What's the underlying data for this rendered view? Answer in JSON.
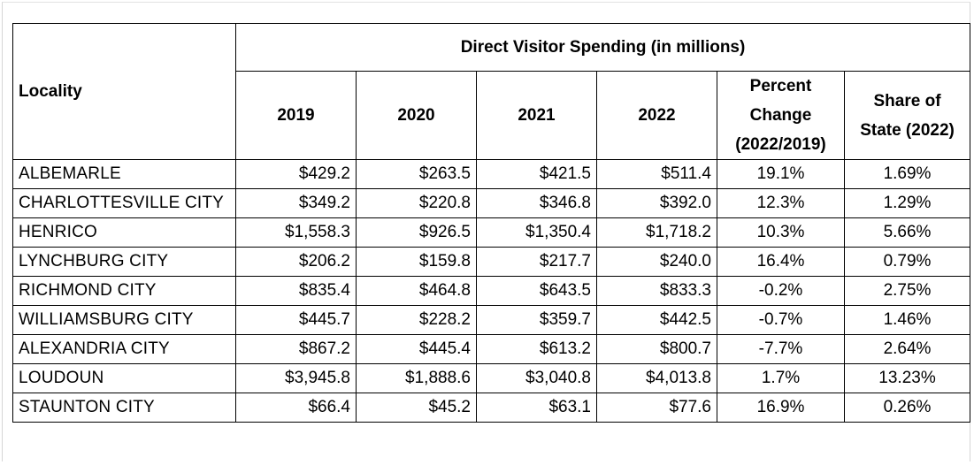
{
  "table": {
    "group_header": "Direct Visitor Spending (in millions)",
    "columns": {
      "locality": "Locality",
      "y2019": "2019",
      "y2020": "2020",
      "y2021": "2021",
      "y2022": "2022",
      "pct_change_line1": "Percent",
      "pct_change_line2": "Change",
      "pct_change_line3": "(2022/2019)",
      "share_line1": "Share of",
      "share_line2": "State (2022)"
    },
    "rows": [
      {
        "locality": "ALBEMARLE",
        "y2019": "$429.2",
        "y2020": "$263.5",
        "y2021": "$421.5",
        "y2022": "$511.4",
        "pct": "19.1%",
        "share": "1.69%"
      },
      {
        "locality": "CHARLOTTESVILLE CITY",
        "y2019": "$349.2",
        "y2020": "$220.8",
        "y2021": "$346.8",
        "y2022": "$392.0",
        "pct": "12.3%",
        "share": "1.29%"
      },
      {
        "locality": "HENRICO",
        "y2019": "$1,558.3",
        "y2020": "$926.5",
        "y2021": "$1,350.4",
        "y2022": "$1,718.2",
        "pct": "10.3%",
        "share": "5.66%"
      },
      {
        "locality": "LYNCHBURG CITY",
        "y2019": "$206.2",
        "y2020": "$159.8",
        "y2021": "$217.7",
        "y2022": "$240.0",
        "pct": "16.4%",
        "share": "0.79%"
      },
      {
        "locality": "RICHMOND CITY",
        "y2019": "$835.4",
        "y2020": "$464.8",
        "y2021": "$643.5",
        "y2022": "$833.3",
        "pct": "-0.2%",
        "share": "2.75%"
      },
      {
        "locality": "WILLIAMSBURG CITY",
        "y2019": "$445.7",
        "y2020": "$228.2",
        "y2021": "$359.7",
        "y2022": "$442.5",
        "pct": "-0.7%",
        "share": "1.46%"
      },
      {
        "locality": "ALEXANDRIA CITY",
        "y2019": "$867.2",
        "y2020": "$445.4",
        "y2021": "$613.2",
        "y2022": "$800.7",
        "pct": "-7.7%",
        "share": "2.64%"
      },
      {
        "locality": "LOUDOUN",
        "y2019": "$3,945.8",
        "y2020": "$1,888.6",
        "y2021": "$3,040.8",
        "y2022": "$4,013.8",
        "pct": "1.7%",
        "share": "13.23%"
      },
      {
        "locality": "STAUNTON CITY",
        "y2019": "$66.4",
        "y2020": "$45.2",
        "y2021": "$63.1",
        "y2022": "$77.6",
        "pct": "16.9%",
        "share": "0.26%"
      }
    ]
  }
}
